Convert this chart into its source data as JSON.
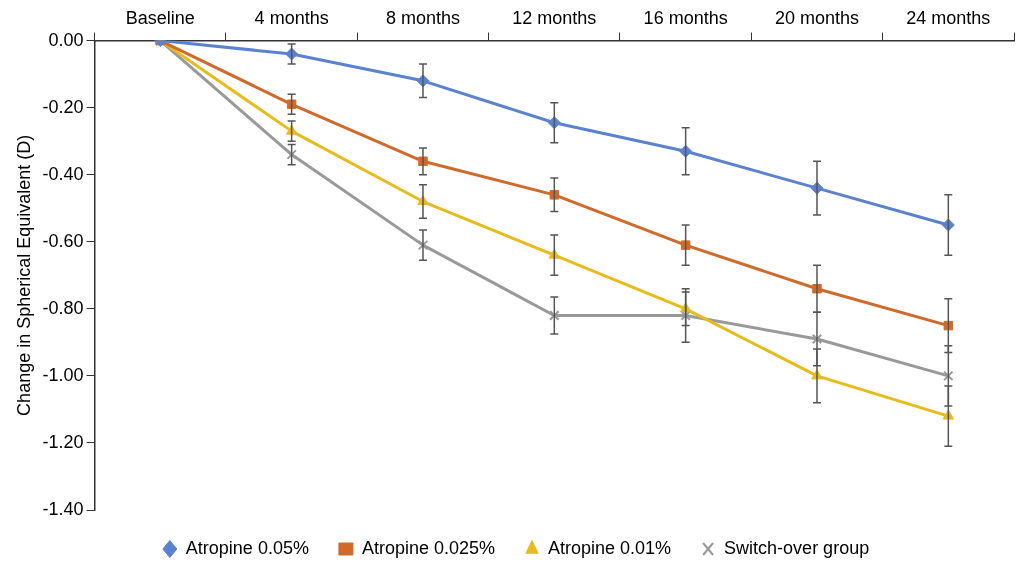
{
  "chart_data": {
    "type": "line",
    "ylabel": "Change in Spherical Equivalent (D)",
    "categories": [
      "Baseline",
      "4 months",
      "8 months",
      "12 months",
      "16 months",
      "20 months",
      "24 months"
    ],
    "ylim": [
      -1.4,
      0
    ],
    "yticks": [
      {
        "value": 0,
        "label": "0.00"
      },
      {
        "value": -0.2,
        "label": "-0.20"
      },
      {
        "value": -0.4,
        "label": "-0.40"
      },
      {
        "value": -0.6,
        "label": "-0.60"
      },
      {
        "value": -0.8,
        "label": "-0.80"
      },
      {
        "value": -1,
        "label": "-1.00"
      },
      {
        "value": -1.2,
        "label": "-1.20"
      },
      {
        "value": -1.4,
        "label": "-1.40"
      }
    ],
    "grid": false,
    "legend": "bottom",
    "line_style": "solid",
    "series": [
      {
        "name": "Atropine 0.05%",
        "color": "#5b82cf",
        "marker": "diamond",
        "values": [
          0,
          -0.04,
          -0.12,
          -0.245,
          -0.33,
          -0.44,
          -0.55
        ],
        "errors": [
          null,
          0.03,
          0.05,
          0.06,
          0.07,
          0.08,
          0.09
        ]
      },
      {
        "name": "Atropine 0.025%",
        "color": "#cf6a2a",
        "marker": "square",
        "values": [
          0,
          -0.19,
          -0.36,
          -0.46,
          -0.61,
          -0.74,
          -0.85
        ],
        "errors": [
          null,
          0.03,
          0.04,
          0.05,
          0.06,
          0.07,
          0.08
        ]
      },
      {
        "name": "Atropine 0.01%",
        "color": "#e8bb1c",
        "marker": "triangle",
        "values": [
          0,
          -0.27,
          -0.48,
          -0.64,
          -0.8,
          -1,
          -1.12
        ],
        "errors": [
          null,
          0.03,
          0.05,
          0.06,
          0.05,
          0.08,
          0.09
        ]
      },
      {
        "name": "Switch-over group",
        "color": "#999999",
        "marker": "cross",
        "values": [
          0,
          -0.34,
          -0.61,
          -0.82,
          -0.82,
          -0.89,
          -1
        ],
        "errors": [
          null,
          0.03,
          0.045,
          0.055,
          0.08,
          0.08,
          0.09
        ]
      }
    ]
  }
}
